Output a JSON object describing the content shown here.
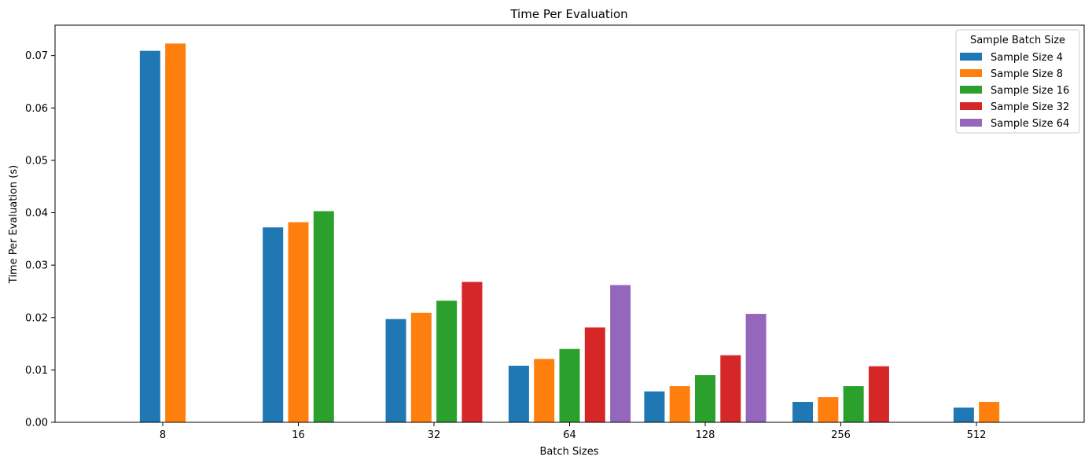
{
  "chart_data": {
    "type": "bar",
    "title": "Time Per Evaluation",
    "xlabel": "Batch Sizes",
    "ylabel": "Time Per Evaluation (s)",
    "categories": [
      "8",
      "16",
      "32",
      "64",
      "128",
      "256",
      "512"
    ],
    "ylim": [
      0,
      0.0758
    ],
    "yticks": [
      0.0,
      0.01,
      0.02,
      0.03,
      0.04,
      0.05,
      0.06,
      0.07
    ],
    "ytick_labels": [
      "0.00",
      "0.01",
      "0.02",
      "0.03",
      "0.04",
      "0.05",
      "0.06",
      "0.07"
    ],
    "legend": {
      "title": "Sample Batch Size",
      "placement": "top-right"
    },
    "series": [
      {
        "name": "Sample Size 4",
        "color": "#1f77b4",
        "values": [
          0.0709,
          0.0372,
          0.0197,
          0.0108,
          0.0059,
          0.0039,
          0.0028
        ]
      },
      {
        "name": "Sample Size 8",
        "color": "#ff7f0e",
        "values": [
          0.0723,
          0.0382,
          0.0209,
          0.0121,
          0.0069,
          0.0048,
          0.0039
        ]
      },
      {
        "name": "Sample Size 16",
        "color": "#2ca02c",
        "values": [
          null,
          0.0403,
          0.0232,
          0.014,
          0.009,
          0.0069,
          null
        ]
      },
      {
        "name": "Sample Size 32",
        "color": "#d62728",
        "values": [
          null,
          null,
          0.0268,
          0.0181,
          0.0128,
          0.0107,
          null
        ]
      },
      {
        "name": "Sample Size 64",
        "color": "#9467bd",
        "values": [
          null,
          null,
          null,
          0.0262,
          0.0207,
          null,
          null
        ]
      }
    ]
  }
}
